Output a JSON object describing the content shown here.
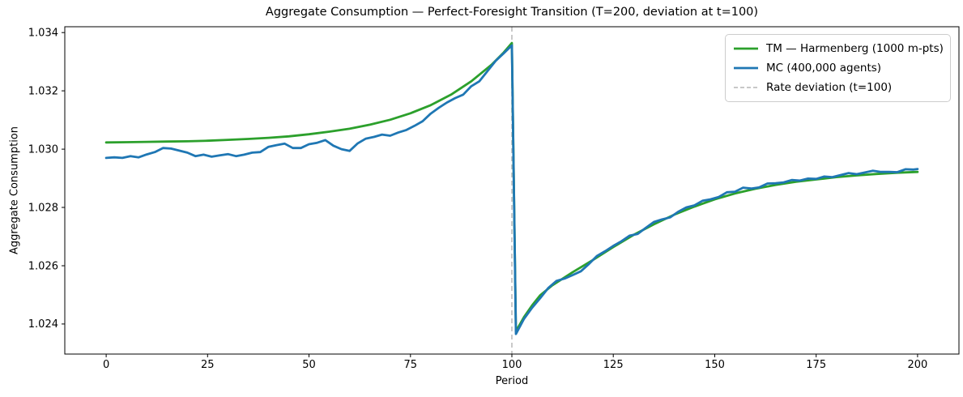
{
  "window": {
    "background": "#ffffff"
  },
  "chart_data": {
    "type": "line",
    "title": "Aggregate Consumption — Perfect-Foresight Transition (T=200, deviation at t=100)",
    "xlabel": "Period",
    "ylabel": "Aggregate Consumption",
    "xlim": [
      -10.2,
      210.2
    ],
    "ylim": [
      1.02297,
      1.0342
    ],
    "x_ticks": [
      0,
      25,
      50,
      75,
      100,
      125,
      150,
      175,
      200
    ],
    "y_ticks": [
      1.024,
      1.026,
      1.028,
      1.03,
      1.032,
      1.034
    ],
    "y_tick_labels": [
      "1.024",
      "1.026",
      "1.028",
      "1.030",
      "1.032",
      "1.034"
    ],
    "grid": false,
    "legend_position": "upper right",
    "legend": [
      {
        "label": "TM — Harmenberg (1000 m-pts)",
        "color": "#2ca02c",
        "dash": false
      },
      {
        "label": "MC (400,000 agents)",
        "color": "#1f77b4",
        "dash": false
      },
      {
        "label": "Rate deviation (t=100)",
        "color": "#b5b5b5",
        "dash": true
      }
    ],
    "vline": {
      "x": 100,
      "color": "#bdbdbd",
      "style": "dashed",
      "label": "Rate deviation (t=100)"
    },
    "series": [
      {
        "name": "TM — Harmenberg (1000 m-pts)",
        "key": "tm-harmenberg",
        "color": "#2ca02c",
        "line_width": 2.8,
        "x": [
          0,
          5,
          10,
          15,
          20,
          25,
          30,
          35,
          40,
          45,
          50,
          55,
          60,
          65,
          70,
          75,
          80,
          85,
          90,
          95,
          98,
          100,
          101,
          103,
          105,
          107,
          110,
          115,
          120,
          125,
          130,
          135,
          140,
          145,
          150,
          155,
          160,
          165,
          170,
          175,
          180,
          185,
          190,
          195,
          200
        ],
        "y": [
          1.03023,
          1.03024,
          1.03025,
          1.03026,
          1.03027,
          1.03029,
          1.03032,
          1.03035,
          1.03039,
          1.03044,
          1.03051,
          1.0306,
          1.0307,
          1.03084,
          1.03101,
          1.03123,
          1.03151,
          1.03187,
          1.03233,
          1.0329,
          1.03332,
          1.03364,
          1.02375,
          1.02424,
          1.02464,
          1.02499,
          1.02533,
          1.02578,
          1.0262,
          1.02664,
          1.02706,
          1.02742,
          1.02775,
          1.02803,
          1.02828,
          1.02848,
          1.02864,
          1.02877,
          1.02888,
          1.02896,
          1.02904,
          1.0291,
          1.02915,
          1.02919,
          1.02922
        ]
      },
      {
        "name": "MC (400,000 agents)",
        "key": "mc-agents",
        "color": "#1f77b4",
        "line_width": 2.8,
        "x": [
          0,
          2,
          4,
          6,
          8,
          10,
          12,
          14,
          16,
          18,
          20,
          22,
          24,
          26,
          28,
          30,
          32,
          34,
          36,
          38,
          40,
          42,
          44,
          46,
          48,
          50,
          52,
          54,
          56,
          58,
          60,
          62,
          64,
          66,
          68,
          70,
          72,
          74,
          76,
          78,
          80,
          82,
          84,
          86,
          88,
          90,
          92,
          94,
          96,
          98,
          100,
          101,
          103,
          105,
          107,
          109,
          111,
          113,
          115,
          117,
          119,
          121,
          123,
          125,
          127,
          129,
          131,
          133,
          135,
          137,
          139,
          141,
          143,
          145,
          147,
          149,
          151,
          153,
          155,
          157,
          159,
          161,
          163,
          165,
          167,
          169,
          171,
          173,
          175,
          177,
          179,
          181,
          183,
          185,
          187,
          189,
          191,
          193,
          195,
          197,
          199,
          200
        ],
        "y": [
          1.0297,
          1.02972,
          1.0297,
          1.02976,
          1.02972,
          1.02982,
          1.0299,
          1.03004,
          1.03002,
          1.02995,
          1.02988,
          1.02976,
          1.02981,
          1.02974,
          1.02979,
          1.02983,
          1.02976,
          1.02981,
          1.02988,
          1.0299,
          1.03008,
          1.03014,
          1.03019,
          1.03004,
          1.03004,
          1.03017,
          1.03022,
          1.03031,
          1.03012,
          1.03,
          1.02994,
          1.0302,
          1.03036,
          1.03042,
          1.0305,
          1.03046,
          1.03057,
          1.03066,
          1.0308,
          1.03096,
          1.03122,
          1.03142,
          1.0316,
          1.03175,
          1.03187,
          1.03216,
          1.03233,
          1.03268,
          1.03303,
          1.03329,
          1.03356,
          1.02366,
          1.02418,
          1.02456,
          1.02489,
          1.02524,
          1.02548,
          1.02556,
          1.02568,
          1.02581,
          1.02606,
          1.02634,
          1.0265,
          1.02668,
          1.02684,
          1.02703,
          1.02709,
          1.0273,
          1.0275,
          1.02759,
          1.02766,
          1.02785,
          1.028,
          1.02807,
          1.02823,
          1.02828,
          1.02836,
          1.02852,
          1.02854,
          1.02868,
          1.02865,
          1.02869,
          1.02882,
          1.02883,
          1.02886,
          1.02894,
          1.02892,
          1.02899,
          1.02898,
          1.02906,
          1.02904,
          1.02911,
          1.02918,
          1.02914,
          1.0292,
          1.02926,
          1.02922,
          1.02922,
          1.02921,
          1.02931,
          1.0293,
          1.02932
        ]
      }
    ]
  }
}
